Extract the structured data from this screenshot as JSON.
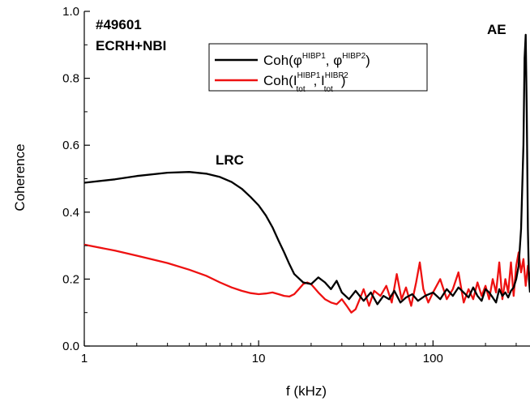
{
  "chart_data": {
    "type": "line",
    "title": "",
    "xlabel": "f (kHz)",
    "ylabel": "Coherence",
    "x_scale": "log",
    "xlim": [
      1,
      360
    ],
    "ylim": [
      0.0,
      1.0
    ],
    "x_ticks": [
      1,
      10,
      100
    ],
    "x_tick_labels": [
      "1",
      "10",
      "100"
    ],
    "y_ticks": [
      0.0,
      0.2,
      0.4,
      0.6,
      0.8,
      1.0
    ],
    "y_tick_labels": [
      "0.0",
      "0.2",
      "0.4",
      "0.6",
      "0.8",
      "1.0"
    ],
    "grid": false,
    "legend_position": "top-center",
    "annotations": [
      "#49601",
      "ECRH+NBI",
      "LRC",
      "AE"
    ],
    "series": [
      {
        "name": "Coh(φHIBP1, φHIBP2)",
        "legend": {
          "base": "Coh(φ",
          "sup1": "HIBP1",
          "sep": ", φ",
          "sup2": "HIBP2",
          "end": ")"
        },
        "color": "#000000",
        "x": [
          1,
          1.5,
          2,
          3,
          4,
          5,
          6,
          7,
          8,
          9,
          10,
          11,
          12,
          13,
          14,
          15,
          16,
          18,
          20,
          22,
          24,
          26,
          28,
          30,
          33,
          36,
          40,
          44,
          48,
          52,
          56,
          60,
          65,
          70,
          76,
          82,
          90,
          100,
          110,
          120,
          130,
          140,
          150,
          160,
          170,
          180,
          190,
          200,
          210,
          220,
          230,
          240,
          250,
          260,
          270,
          280,
          290,
          300,
          310,
          320,
          330,
          335,
          340,
          345,
          350,
          355,
          360
        ],
        "values": [
          0.488,
          0.498,
          0.508,
          0.518,
          0.52,
          0.515,
          0.505,
          0.49,
          0.47,
          0.445,
          0.42,
          0.39,
          0.355,
          0.315,
          0.28,
          0.245,
          0.215,
          0.19,
          0.185,
          0.205,
          0.19,
          0.17,
          0.195,
          0.16,
          0.14,
          0.165,
          0.135,
          0.16,
          0.125,
          0.15,
          0.14,
          0.165,
          0.13,
          0.145,
          0.155,
          0.135,
          0.15,
          0.16,
          0.14,
          0.17,
          0.15,
          0.175,
          0.16,
          0.145,
          0.175,
          0.15,
          0.135,
          0.17,
          0.16,
          0.145,
          0.13,
          0.17,
          0.15,
          0.16,
          0.145,
          0.165,
          0.175,
          0.2,
          0.24,
          0.35,
          0.6,
          0.86,
          0.93,
          0.7,
          0.35,
          0.2,
          0.16
        ]
      },
      {
        "name": "Coh(ItotHIBP1, ItotHIBP2)",
        "legend": {
          "base": "Coh(I",
          "sub1": "tot",
          "sup1": "HIBP1",
          "sep": ", I",
          "sub2": "tot",
          "sup2": "HIBP2",
          "end": ")"
        },
        "color": "#ee1111",
        "x": [
          1,
          1.5,
          2,
          3,
          4,
          5,
          6,
          7,
          8,
          9,
          10,
          11,
          12,
          13,
          14,
          15,
          16,
          17,
          18,
          19,
          20,
          22,
          24,
          26,
          28,
          30,
          32,
          34,
          36,
          38,
          40,
          43,
          46,
          50,
          54,
          58,
          62,
          66,
          70,
          75,
          80,
          84,
          88,
          94,
          100,
          110,
          120,
          130,
          140,
          150,
          160,
          170,
          180,
          190,
          200,
          210,
          220,
          230,
          240,
          250,
          260,
          270,
          280,
          290,
          300,
          310,
          320,
          330,
          340,
          350,
          360
        ],
        "values": [
          0.303,
          0.285,
          0.27,
          0.248,
          0.228,
          0.21,
          0.19,
          0.175,
          0.165,
          0.158,
          0.155,
          0.157,
          0.16,
          0.155,
          0.15,
          0.148,
          0.155,
          0.17,
          0.185,
          0.19,
          0.185,
          0.16,
          0.14,
          0.13,
          0.125,
          0.14,
          0.12,
          0.1,
          0.11,
          0.14,
          0.17,
          0.12,
          0.165,
          0.15,
          0.18,
          0.13,
          0.215,
          0.14,
          0.175,
          0.12,
          0.19,
          0.25,
          0.17,
          0.13,
          0.16,
          0.2,
          0.14,
          0.17,
          0.22,
          0.13,
          0.17,
          0.14,
          0.19,
          0.15,
          0.18,
          0.14,
          0.2,
          0.16,
          0.25,
          0.14,
          0.2,
          0.16,
          0.25,
          0.15,
          0.24,
          0.28,
          0.22,
          0.26,
          0.18,
          0.24,
          0.2
        ]
      }
    ]
  }
}
